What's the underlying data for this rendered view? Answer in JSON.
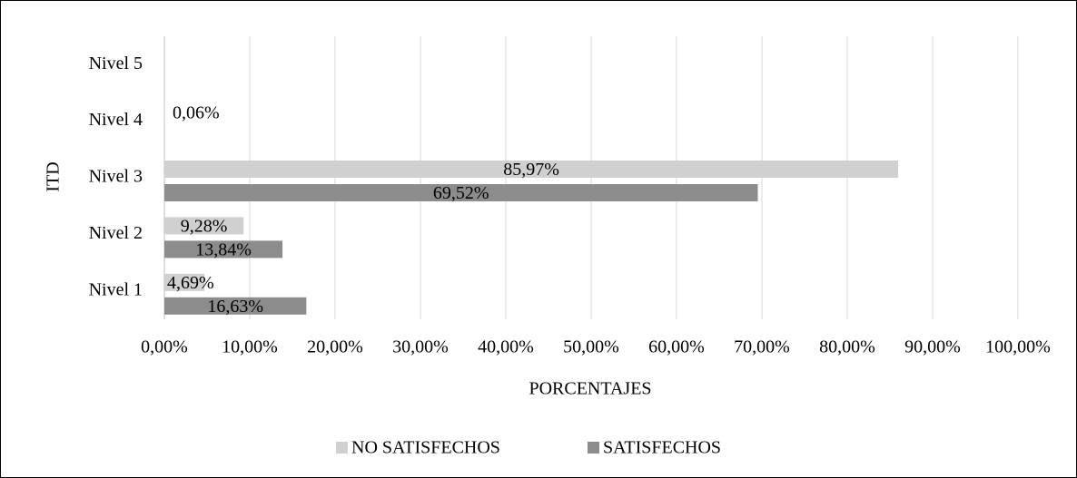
{
  "chart_data": {
    "type": "hbar",
    "y_label": "ITD",
    "x_label": "PORCENTAJES",
    "categories": [
      "Nivel 1",
      "Nivel 2",
      "Nivel 3",
      "Nivel 4",
      "Nivel 5"
    ],
    "series": [
      {
        "name": "NO SATISFECHOS",
        "color": "#d0d0d0",
        "values": [
          4.69,
          9.28,
          85.97,
          0.06,
          null
        ],
        "value_labels": [
          "4,69%",
          "9,28%",
          "85,97%",
          "0,06%",
          null
        ]
      },
      {
        "name": "SATISFECHOS",
        "color": "#8c8c8c",
        "values": [
          16.63,
          13.84,
          69.52,
          null,
          null
        ],
        "value_labels": [
          "16,63%",
          "13,84%",
          "69,52%",
          null,
          null
        ]
      }
    ],
    "xlim": [
      0,
      100
    ],
    "xticks": [
      {
        "value": 0,
        "label": "0,00%"
      },
      {
        "value": 10,
        "label": "10,00%"
      },
      {
        "value": 20,
        "label": "20,00%"
      },
      {
        "value": 30,
        "label": "30,00%"
      },
      {
        "value": 40,
        "label": "40,00%"
      },
      {
        "value": 50,
        "label": "50,00%"
      },
      {
        "value": 60,
        "label": "60,00%"
      },
      {
        "value": 70,
        "label": "70,00%"
      },
      {
        "value": 80,
        "label": "80,00%"
      },
      {
        "value": 90,
        "label": "90,00%"
      },
      {
        "value": 100,
        "label": "100,00%"
      }
    ],
    "grid": true,
    "legend": "bottom"
  }
}
